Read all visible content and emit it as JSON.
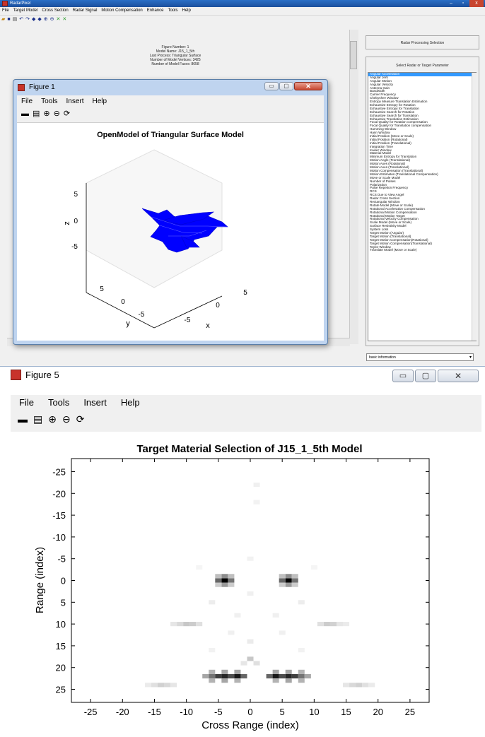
{
  "main_window": {
    "title": "RadarPixel",
    "menu": [
      "File",
      "Target Model",
      "Cross Section",
      "Radar Signal",
      "Motion Compensation",
      "Enhance",
      "Tools",
      "Help"
    ],
    "title_buttons": {
      "minimize": "–",
      "restore": "▫",
      "close": "x"
    }
  },
  "info": {
    "figure_number": "Figure Number:   1",
    "model_name": "Model Name:  J15_1_5th",
    "last_process": "Last Process:   Triangular Surface",
    "vertices": "Number of Model Vertices:   3425",
    "faces": "Number of Model Faces:   8658"
  },
  "right_panel": {
    "header": "Radar Processing Selection",
    "select_label": "Select Radar or Target Parameter",
    "items": [
      "Angular Acceleration",
      "Angular Jerk",
      "Angular Motion",
      "Angular Velocity",
      "Antenna Gain",
      "Bandwidth",
      "Carrier Frequency",
      "Chebyshev Window",
      "Entropy Measure Translation Estimation",
      "Exhaustive Entropy for Rotation",
      "Exhaustive Entropy for Translation",
      "Exhaustive Search for Rotation",
      "Exhaustive Search for Translation",
      "Exhaustive Translation Estimation",
      "Focal Quality for Rotation compensation",
      "Focal Quality for Translation compensation",
      "Hamming Window",
      "Hann Window",
      "Initial Position (Move or Scale)",
      "Initial Position (Rotational)",
      "Initial Position (Translational)",
      "Integration Time",
      "Kaiser Window",
      "Material Model",
      "Minimum Entropy for Translation",
      "Motion Angle (Translational)",
      "Motion Axes (Rotational)",
      "Motion Axes (Translational)",
      "Motion Compensation (Translational)",
      "Motion Estimates (Translational Compensation)",
      "Move or Scale Model",
      "Number of Pulses",
      "Polarization",
      "Pulse Repetion Frequency",
      "RCS",
      "RCS Due to View Angel",
      "Radar Cross Section",
      "Rectangular Window",
      "Rotate Model (Move or Scale)",
      "Rotational Acceleration Compensation",
      "Rotational Motion Compensation",
      "Rotational Motion Target",
      "Rotational Velocity Compensation",
      "Scale Model (Move or Scale)",
      "Surface Resistivity Model",
      "System Loss",
      "Target Motion (Angular)",
      "Target Motion (Translational)",
      "Target Motion Compensation(Rotational)",
      "Target Motion Compensation(Translational)",
      "Taylor Window",
      "Translate Model (Move or Scale)"
    ],
    "selected_index": 0,
    "dropdown_value": "basic information"
  },
  "figure1": {
    "title": "Figure 1",
    "menu": [
      "File",
      "Tools",
      "Insert",
      "Help"
    ],
    "plot_title": "OpenModel of Triangular Surface Model",
    "z_label": "z",
    "y_label": "y",
    "x_label": "x",
    "z_ticks": [
      "5",
      "0",
      "-5"
    ],
    "y_ticks": [
      "5",
      "0",
      "-5"
    ],
    "x_ticks": [
      "-5",
      "0",
      "5"
    ],
    "model_color": "#0000ff"
  },
  "figure5": {
    "title": "Figure 5",
    "menu": [
      "File",
      "Tools",
      "Insert",
      "Help"
    ]
  },
  "chart_data": {
    "type": "heatmap",
    "title": "Target Material Selection of J15_1_5th Model",
    "xlabel": "Cross Range (index)",
    "ylabel": "Range (index)",
    "xlim": [
      -28,
      28
    ],
    "ylim": [
      -28,
      28
    ],
    "xticks": [
      -25,
      -20,
      -15,
      -10,
      -5,
      0,
      5,
      10,
      15,
      20,
      25
    ],
    "yticks": [
      -25,
      -20,
      -15,
      -10,
      -5,
      0,
      5,
      10,
      15,
      20,
      25
    ],
    "y_reversed": true,
    "colormap": "gray-inverted",
    "points": [
      {
        "x": -4,
        "y": 0,
        "v": 1.0
      },
      {
        "x": -5,
        "y": 0,
        "v": 0.6
      },
      {
        "x": -3,
        "y": 0,
        "v": 0.55
      },
      {
        "x": -4,
        "y": -1,
        "v": 0.45
      },
      {
        "x": -4,
        "y": 1,
        "v": 0.4
      },
      {
        "x": -5,
        "y": -1,
        "v": 0.25
      },
      {
        "x": -3,
        "y": -1,
        "v": 0.25
      },
      {
        "x": -5,
        "y": 1,
        "v": 0.2
      },
      {
        "x": -3,
        "y": 1,
        "v": 0.2
      },
      {
        "x": 6,
        "y": 0,
        "v": 1.0
      },
      {
        "x": 5,
        "y": 0,
        "v": 0.6
      },
      {
        "x": 7,
        "y": 0,
        "v": 0.55
      },
      {
        "x": 6,
        "y": -1,
        "v": 0.45
      },
      {
        "x": 6,
        "y": 1,
        "v": 0.4
      },
      {
        "x": 5,
        "y": -1,
        "v": 0.25
      },
      {
        "x": 7,
        "y": -1,
        "v": 0.25
      },
      {
        "x": 5,
        "y": 1,
        "v": 0.2
      },
      {
        "x": 7,
        "y": 1,
        "v": 0.2
      },
      {
        "x": -6,
        "y": 22,
        "v": 0.55
      },
      {
        "x": -5,
        "y": 22,
        "v": 0.75
      },
      {
        "x": -4,
        "y": 22,
        "v": 0.85
      },
      {
        "x": -3,
        "y": 22,
        "v": 0.7
      },
      {
        "x": -2,
        "y": 22,
        "v": 0.9
      },
      {
        "x": -1,
        "y": 22,
        "v": 0.6
      },
      {
        "x": -7,
        "y": 22,
        "v": 0.35
      },
      {
        "x": -6,
        "y": 21,
        "v": 0.3
      },
      {
        "x": -4,
        "y": 21,
        "v": 0.35
      },
      {
        "x": -2,
        "y": 21,
        "v": 0.35
      },
      {
        "x": -6,
        "y": 23,
        "v": 0.3
      },
      {
        "x": -4,
        "y": 23,
        "v": 0.35
      },
      {
        "x": -2,
        "y": 23,
        "v": 0.3
      },
      {
        "x": 3,
        "y": 22,
        "v": 0.6
      },
      {
        "x": 4,
        "y": 22,
        "v": 0.9
      },
      {
        "x": 5,
        "y": 22,
        "v": 0.7
      },
      {
        "x": 6,
        "y": 22,
        "v": 0.85
      },
      {
        "x": 7,
        "y": 22,
        "v": 0.75
      },
      {
        "x": 8,
        "y": 22,
        "v": 0.55
      },
      {
        "x": 9,
        "y": 22,
        "v": 0.35
      },
      {
        "x": 4,
        "y": 21,
        "v": 0.35
      },
      {
        "x": 6,
        "y": 21,
        "v": 0.35
      },
      {
        "x": 8,
        "y": 21,
        "v": 0.3
      },
      {
        "x": 4,
        "y": 23,
        "v": 0.3
      },
      {
        "x": 6,
        "y": 23,
        "v": 0.35
      },
      {
        "x": 8,
        "y": 23,
        "v": 0.3
      },
      {
        "x": -10,
        "y": 10,
        "v": 0.22
      },
      {
        "x": -9,
        "y": 10,
        "v": 0.2
      },
      {
        "x": -11,
        "y": 10,
        "v": 0.15
      },
      {
        "x": -8,
        "y": 10,
        "v": 0.12
      },
      {
        "x": -12,
        "y": 10,
        "v": 0.1
      },
      {
        "x": 12,
        "y": 10,
        "v": 0.2
      },
      {
        "x": 13,
        "y": 10,
        "v": 0.18
      },
      {
        "x": 11,
        "y": 10,
        "v": 0.12
      },
      {
        "x": 14,
        "y": 10,
        "v": 0.1
      },
      {
        "x": 15,
        "y": 10,
        "v": 0.08
      },
      {
        "x": -14,
        "y": 24,
        "v": 0.18
      },
      {
        "x": -13,
        "y": 24,
        "v": 0.15
      },
      {
        "x": -15,
        "y": 24,
        "v": 0.12
      },
      {
        "x": -12,
        "y": 24,
        "v": 0.1
      },
      {
        "x": -16,
        "y": 24,
        "v": 0.08
      },
      {
        "x": 17,
        "y": 24,
        "v": 0.18
      },
      {
        "x": 16,
        "y": 24,
        "v": 0.15
      },
      {
        "x": 18,
        "y": 24,
        "v": 0.12
      },
      {
        "x": 15,
        "y": 24,
        "v": 0.1
      },
      {
        "x": 19,
        "y": 24,
        "v": 0.08
      },
      {
        "x": 0,
        "y": 18,
        "v": 0.22
      },
      {
        "x": 1,
        "y": 19,
        "v": 0.12
      },
      {
        "x": -1,
        "y": 19,
        "v": 0.1
      },
      {
        "x": 0,
        "y": 14,
        "v": 0.08
      },
      {
        "x": 1,
        "y": -22,
        "v": 0.06
      },
      {
        "x": 1,
        "y": -18,
        "v": 0.05
      },
      {
        "x": -6,
        "y": 5,
        "v": 0.07
      },
      {
        "x": 8,
        "y": 5,
        "v": 0.07
      },
      {
        "x": -2,
        "y": 8,
        "v": 0.06
      },
      {
        "x": 4,
        "y": 8,
        "v": 0.06
      },
      {
        "x": 0,
        "y": -5,
        "v": 0.05
      },
      {
        "x": 0,
        "y": 3,
        "v": 0.06
      },
      {
        "x": -8,
        "y": -3,
        "v": 0.04
      },
      {
        "x": 10,
        "y": -3,
        "v": 0.04
      },
      {
        "x": -3,
        "y": 12,
        "v": 0.06
      },
      {
        "x": 5,
        "y": 12,
        "v": 0.06
      },
      {
        "x": -6,
        "y": 16,
        "v": 0.05
      },
      {
        "x": 8,
        "y": 16,
        "v": 0.05
      }
    ]
  }
}
